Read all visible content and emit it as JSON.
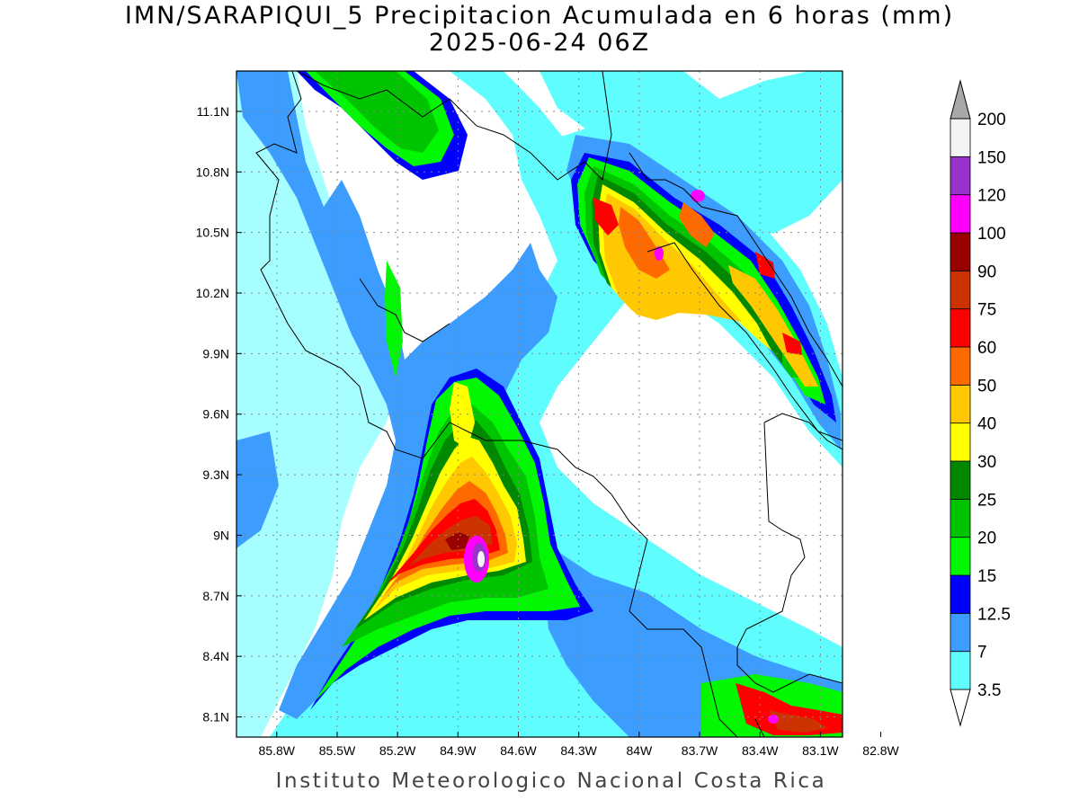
{
  "title": {
    "line1": "IMN/SARAPIQUI_5 Precipitacion Acumulada en 6 horas (mm)",
    "line2": "2025-06-24 06Z"
  },
  "footer": "Instituto Meteorologico Nacional Costa Rica",
  "map": {
    "lon_range": [
      -86.0,
      -82.99
    ],
    "lat_range": [
      8.0,
      11.3
    ],
    "lon_ticks": [
      "85.8W",
      "85.5W",
      "85.2W",
      "84.9W",
      "84.6W",
      "84.3W",
      "84W",
      "83.7W",
      "83.4W",
      "83.1W",
      "82.8W"
    ],
    "lon_tick_values": [
      -85.8,
      -85.5,
      -85.2,
      -84.9,
      -84.6,
      -84.3,
      -84.0,
      -83.7,
      -83.4,
      -83.1,
      -82.8
    ],
    "lat_ticks": [
      "11.1N",
      "10.8N",
      "10.5N",
      "10.2N",
      "9.9N",
      "9.6N",
      "9.3N",
      "9N",
      "8.7N",
      "8.4N",
      "8.1N"
    ],
    "lat_tick_values": [
      11.1,
      10.8,
      10.5,
      10.2,
      9.9,
      9.6,
      9.3,
      9.0,
      8.7,
      8.4,
      8.1
    ],
    "grid": true
  },
  "colorbar": {
    "levels": [
      "3.5",
      "7",
      "12.5",
      "15",
      "20",
      "25",
      "30",
      "40",
      "50",
      "60",
      "75",
      "90",
      "100",
      "120",
      "150",
      "200"
    ],
    "colors": [
      "#5ffdfd",
      "#3d9dff",
      "#0000ff",
      "#02f702",
      "#00c400",
      "#008800",
      "#ffff00",
      "#ffc800",
      "#ff6a00",
      "#ff0000",
      "#cc3300",
      "#990000",
      "#ff00ff",
      "#9933cc",
      "#f4f4f4",
      "#a8a8a8"
    ]
  }
}
